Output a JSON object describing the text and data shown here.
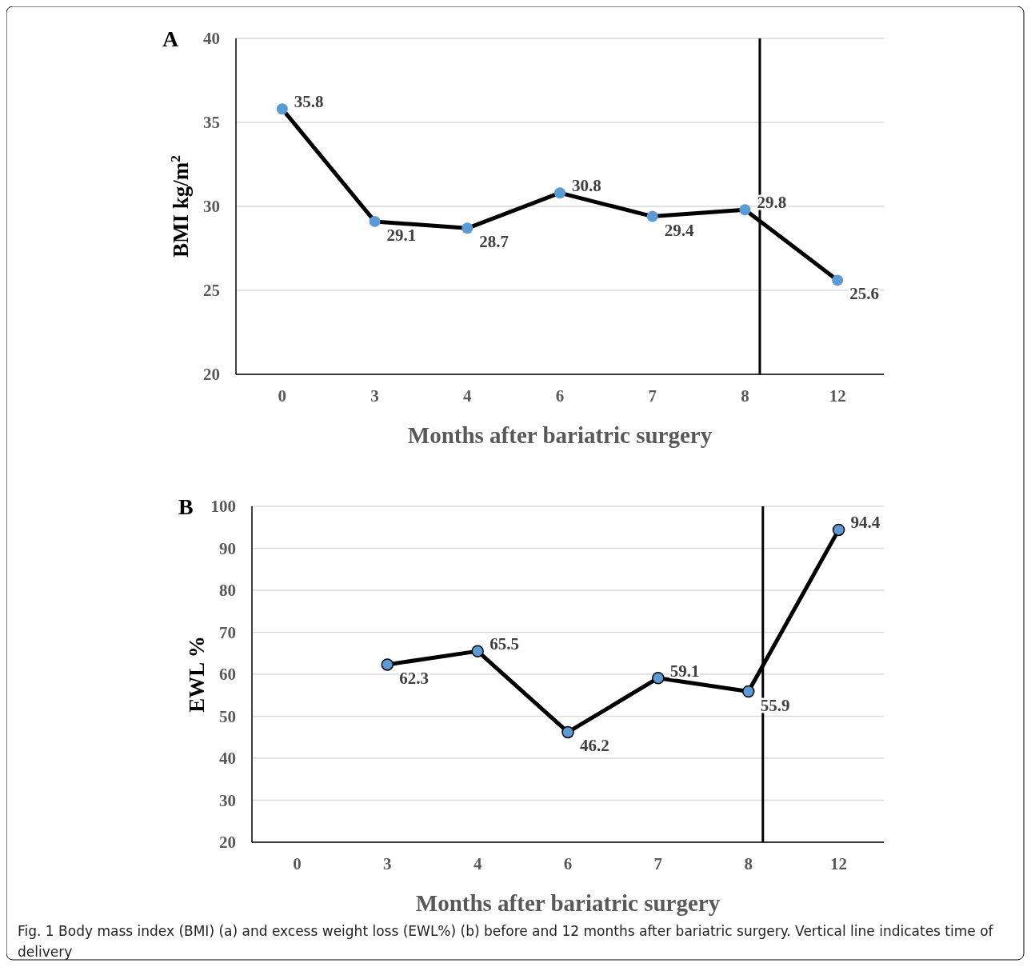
{
  "chart_data": [
    {
      "type": "line",
      "title": "A",
      "xlabel": "Months after bariatric surgery",
      "ylabel": "BMI kg/m$^{2}$",
      "categories": [
        "0",
        "3",
        "4",
        "6",
        "7",
        "8",
        "12"
      ],
      "series": [
        {
          "color": "#000000",
          "values": [
            35.8,
            29.1,
            28.7,
            30.8,
            29.4,
            29.8,
            25.6
          ]
        }
      ],
      "ylim": [
        20,
        40
      ],
      "yticks": [
        20,
        25,
        30,
        35,
        40
      ],
      "grid": "y",
      "marker": "circle",
      "data_labels": true,
      "ref_lines": [
        {
          "axis": "x",
          "value": "8",
          "color": "#000000"
        }
      ]
    },
    {
      "type": "line",
      "title": "B",
      "xlabel": "Months after bariatric surgery",
      "ylabel": "EWL %",
      "categories": [
        "0",
        "3",
        "4",
        "6",
        "7",
        "8",
        "12"
      ],
      "series": [
        {
          "color": "#000000",
          "values": [
            null,
            62.3,
            65.5,
            46.2,
            59.1,
            55.9,
            94.4
          ]
        }
      ],
      "ylim": [
        20,
        100
      ],
      "yticks": [
        20,
        30,
        40,
        50,
        60,
        70,
        80,
        90,
        100
      ],
      "grid": "y",
      "marker": "circle",
      "data_labels": true,
      "ref_lines": [
        {
          "axis": "x",
          "value": "8",
          "color": "#000000"
        }
      ],
      "annotations": [
        "Fig. 1 Body mass index (BMI) (a) and excess weight loss (EWL%) (b) before and 12 months after bariatric surgery. Vertical line indicates time of delivery"
      ]
    }
  ]
}
